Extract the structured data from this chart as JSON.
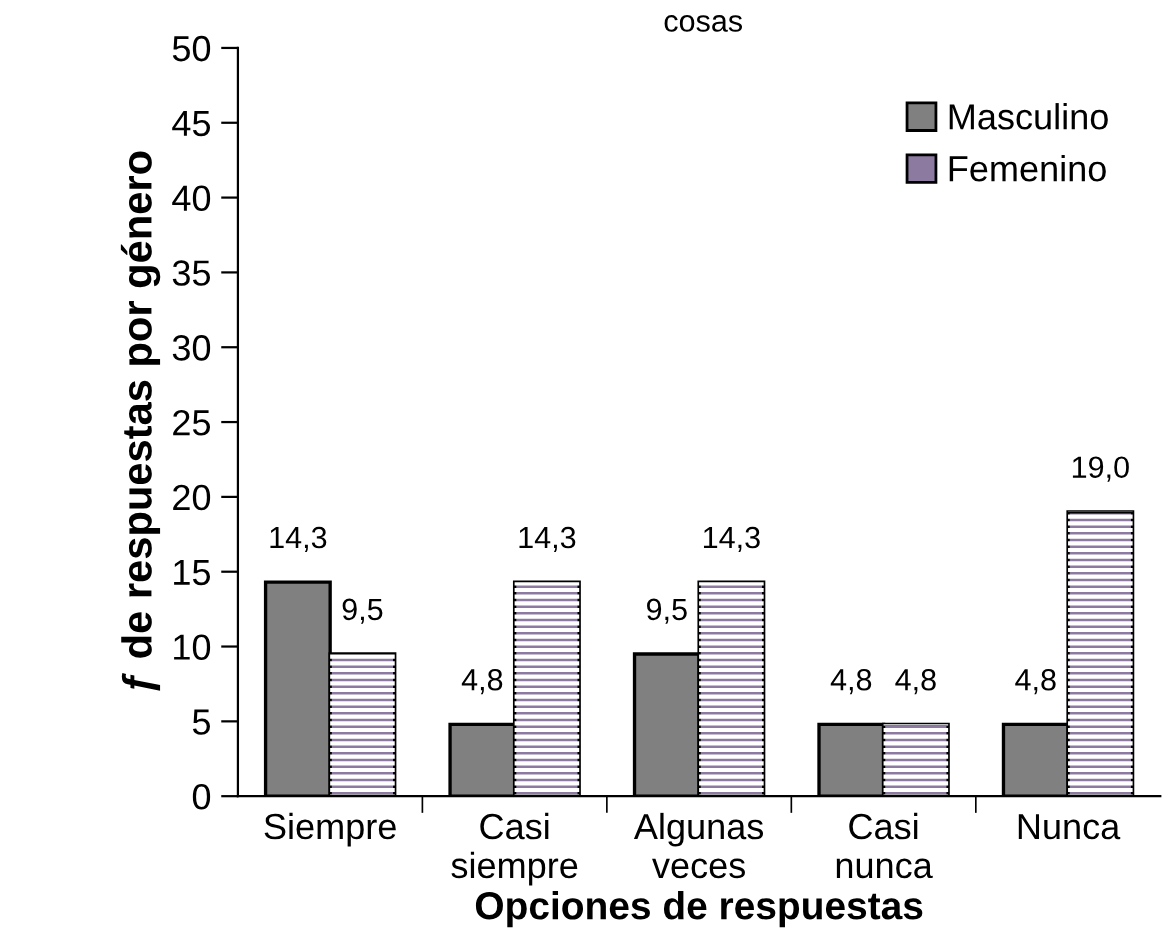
{
  "chart_data": {
    "type": "bar",
    "title": "cosas",
    "xlabel": "Opciones de respuestas",
    "ylabel": "ƒ de respuestas por género",
    "categories": [
      "Siempre",
      "Casi\nsiempre",
      "Algunas\nveces",
      "Casi\nnunca",
      "Nunca"
    ],
    "series": [
      {
        "name": "Masculino",
        "color": "#808080",
        "values": [
          14.3,
          4.8,
          9.5,
          4.8,
          4.8
        ],
        "value_labels": [
          "14,3",
          "4,8",
          "9,5",
          "4,8",
          "4,8"
        ]
      },
      {
        "name": "Femenino",
        "color": "#8c7aa0",
        "values": [
          9.5,
          14.3,
          14.3,
          4.8,
          19.0
        ],
        "value_labels": [
          "9,5",
          "14,3",
          "14,3",
          "4,8",
          "19,0"
        ]
      }
    ],
    "ylim": [
      0,
      50
    ],
    "yticks": [
      0,
      5,
      10,
      15,
      20,
      25,
      30,
      35,
      40,
      45,
      50
    ],
    "grid": false,
    "legend": "top right"
  }
}
